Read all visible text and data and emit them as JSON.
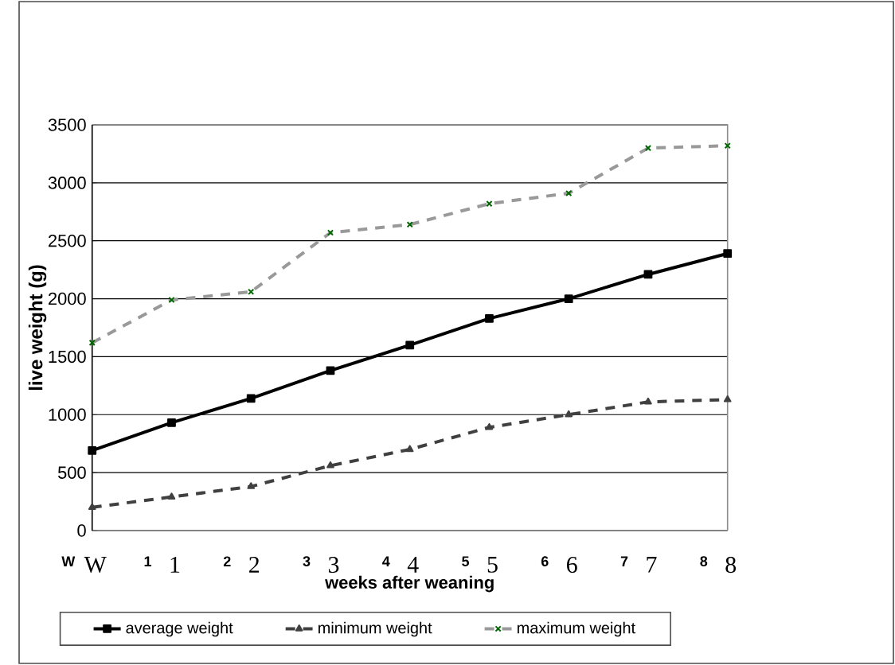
{
  "chart_data": {
    "type": "line",
    "xlabel": "weeks after weaning",
    "ylabel": "live weight (g)",
    "categories": [
      "W",
      "1",
      "2",
      "3",
      "4",
      "5",
      "6",
      "7",
      "8"
    ],
    "annotations": [
      "W",
      "1",
      "2",
      "3",
      "4",
      "5",
      "6",
      "7",
      "8"
    ],
    "series": [
      {
        "name": "average weight",
        "color": "#000000",
        "marker": "square",
        "line_style": "solid",
        "values": [
          690,
          930,
          1140,
          1380,
          1600,
          1830,
          2000,
          2210,
          2390
        ]
      },
      {
        "name": "minimum weight",
        "color": "#404040",
        "marker": "triangle",
        "line_style": "dashed",
        "values": [
          200,
          290,
          380,
          560,
          700,
          890,
          1000,
          1110,
          1130
        ]
      },
      {
        "name": "maximum weight",
        "color": "#999999",
        "marker": "cross",
        "line_style": "dashed",
        "values": [
          1620,
          1990,
          2060,
          2570,
          2640,
          2820,
          2910,
          3300,
          3320
        ]
      }
    ],
    "ylim": [
      0,
      3500
    ],
    "yticks": [
      0,
      500,
      1000,
      1500,
      2000,
      2500,
      3000,
      3500
    ],
    "grid": "y",
    "legend": "bottom"
  }
}
